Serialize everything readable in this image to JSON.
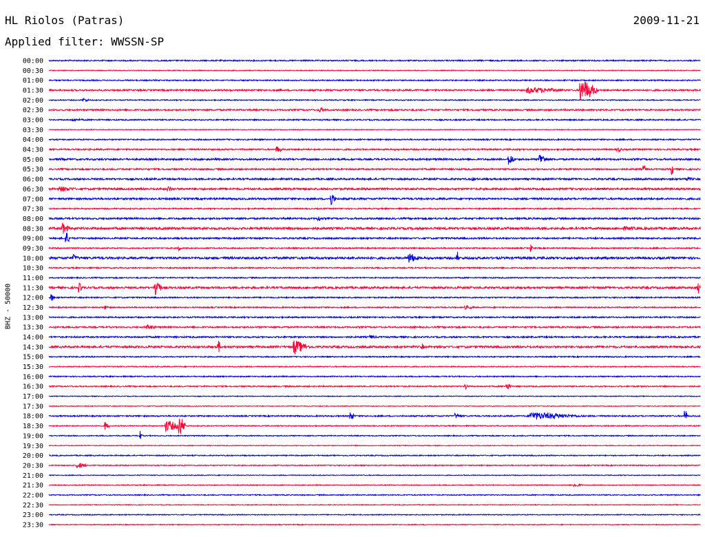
{
  "header": {
    "station": "HL Riolos (Patras)",
    "date": "2009-11-21",
    "filter": "Applied filter: WWSSN-SP"
  },
  "channel_label": "BHZ - 50000",
  "colors": {
    "even_row": "#0000dd",
    "odd_row": "#ff0033",
    "text": "#000000"
  },
  "chart_data": {
    "type": "line",
    "kind": "helicorder",
    "title": "HL Riolos (Patras)",
    "subtitle": "Applied filter: WWSSN-SP",
    "ylabel": "BHZ - 50000",
    "rows": [
      "00:00",
      "00:30",
      "01:00",
      "01:30",
      "02:00",
      "02:30",
      "03:00",
      "03:30",
      "04:00",
      "04:30",
      "05:00",
      "05:30",
      "06:00",
      "06:30",
      "07:00",
      "07:30",
      "08:00",
      "08:30",
      "09:00",
      "09:30",
      "10:00",
      "10:30",
      "11:00",
      "11:30",
      "12:00",
      "12:30",
      "13:00",
      "13:30",
      "14:00",
      "14:30",
      "15:00",
      "15:30",
      "16:00",
      "16:30",
      "17:00",
      "17:30",
      "18:00",
      "18:30",
      "19:00",
      "19:30",
      "20:00",
      "20:30",
      "21:00",
      "21:30",
      "22:00",
      "22:30",
      "23:00",
      "23:30"
    ],
    "row_duration_min": 30,
    "trace_colors": [
      "#0000dd",
      "#ff0033"
    ],
    "noise_levels": [
      1.0,
      0.6,
      0.9,
      1.3,
      0.8,
      1.2,
      1.0,
      0.6,
      1.0,
      1.2,
      1.4,
      1.2,
      1.4,
      1.6,
      1.5,
      1.0,
      1.4,
      1.8,
      1.3,
      1.0,
      1.8,
      1.0,
      0.9,
      1.6,
      1.0,
      1.0,
      1.1,
      1.2,
      1.2,
      1.6,
      0.9,
      0.8,
      0.9,
      1.0,
      0.6,
      0.6,
      1.0,
      0.8,
      0.8,
      0.6,
      0.8,
      0.8,
      0.6,
      0.7,
      0.8,
      0.6,
      0.7,
      0.6
    ],
    "events": [
      {
        "row": "01:30",
        "minute": 22,
        "amplitude": 5,
        "duration_min": 2.0
      },
      {
        "row": "01:30",
        "minute": 24.5,
        "amplitude": 17,
        "duration_min": 0.8
      },
      {
        "row": "02:00",
        "minute": 1.6,
        "amplitude": 3,
        "duration_min": 0.3
      },
      {
        "row": "02:30",
        "minute": 12.5,
        "amplitude": 4,
        "duration_min": 0.4
      },
      {
        "row": "03:00",
        "minute": 1.1,
        "amplitude": 2,
        "duration_min": 0.8
      },
      {
        "row": "04:30",
        "minute": 10.5,
        "amplitude": 5,
        "duration_min": 0.3
      },
      {
        "row": "04:30",
        "minute": 26.2,
        "amplitude": 4,
        "duration_min": 0.3
      },
      {
        "row": "05:00",
        "minute": 0.5,
        "amplitude": 2,
        "duration_min": 0.6
      },
      {
        "row": "05:00",
        "minute": 21.2,
        "amplitude": 8,
        "duration_min": 0.3
      },
      {
        "row": "05:00",
        "minute": 22.6,
        "amplitude": 9,
        "duration_min": 0.4
      },
      {
        "row": "05:30",
        "minute": 27.4,
        "amplitude": 7,
        "duration_min": 0.1
      },
      {
        "row": "05:30",
        "minute": 28.7,
        "amplitude": 9,
        "duration_min": 0.1
      },
      {
        "row": "06:00",
        "minute": 19.5,
        "amplitude": 3,
        "duration_min": 0.4
      },
      {
        "row": "06:00",
        "minute": 29.3,
        "amplitude": 3,
        "duration_min": 0.7
      },
      {
        "row": "06:30",
        "minute": 0.5,
        "amplitude": 4,
        "duration_min": 1.0
      },
      {
        "row": "06:30",
        "minute": 5.5,
        "amplitude": 4,
        "duration_min": 0.4
      },
      {
        "row": "07:00",
        "minute": 13.0,
        "amplitude": 11,
        "duration_min": 0.2
      },
      {
        "row": "08:00",
        "minute": 12.4,
        "amplitude": 5,
        "duration_min": 0.2
      },
      {
        "row": "08:30",
        "minute": 0.6,
        "amplitude": 9,
        "duration_min": 0.4
      },
      {
        "row": "08:30",
        "minute": 26.5,
        "amplitude": 3,
        "duration_min": 1.5
      },
      {
        "row": "09:00",
        "minute": 0.8,
        "amplitude": 9,
        "duration_min": 0.2
      },
      {
        "row": "09:30",
        "minute": 6.0,
        "amplitude": 5,
        "duration_min": 0.1
      },
      {
        "row": "09:30",
        "minute": 22.2,
        "amplitude": 6,
        "duration_min": 0.1
      },
      {
        "row": "10:00",
        "minute": 1.1,
        "amplitude": 6,
        "duration_min": 0.3
      },
      {
        "row": "10:00",
        "minute": 16.6,
        "amplitude": 8,
        "duration_min": 0.5
      },
      {
        "row": "10:00",
        "minute": 18.8,
        "amplitude": 10,
        "duration_min": 0.1
      },
      {
        "row": "11:30",
        "minute": 1.4,
        "amplitude": 7,
        "duration_min": 0.2
      },
      {
        "row": "11:30",
        "minute": 4.9,
        "amplitude": 16,
        "duration_min": 0.3
      },
      {
        "row": "11:30",
        "minute": 29.9,
        "amplitude": 11,
        "duration_min": 0.1
      },
      {
        "row": "12:00",
        "minute": 0.1,
        "amplitude": 6,
        "duration_min": 0.2
      },
      {
        "row": "12:30",
        "minute": 2.6,
        "amplitude": 3,
        "duration_min": 0.3
      },
      {
        "row": "12:30",
        "minute": 19.2,
        "amplitude": 3,
        "duration_min": 0.5
      },
      {
        "row": "13:30",
        "minute": 4.5,
        "amplitude": 4,
        "duration_min": 0.6
      },
      {
        "row": "14:00",
        "minute": 14.8,
        "amplitude": 3,
        "duration_min": 0.5
      },
      {
        "row": "14:30",
        "minute": 7.8,
        "amplitude": 12,
        "duration_min": 0.1
      },
      {
        "row": "14:30",
        "minute": 11.3,
        "amplitude": 11,
        "duration_min": 0.7
      },
      {
        "row": "14:30",
        "minute": 17.2,
        "amplitude": 5,
        "duration_min": 0.1
      },
      {
        "row": "16:30",
        "minute": 19.2,
        "amplitude": 5,
        "duration_min": 0.1
      },
      {
        "row": "16:30",
        "minute": 21.1,
        "amplitude": 6,
        "duration_min": 0.2
      },
      {
        "row": "18:00",
        "minute": 13.9,
        "amplitude": 7,
        "duration_min": 0.2
      },
      {
        "row": "18:00",
        "minute": 18.7,
        "amplitude": 4,
        "duration_min": 0.4
      },
      {
        "row": "18:00",
        "minute": 22.2,
        "amplitude": 6,
        "duration_min": 2.5
      },
      {
        "row": "18:00",
        "minute": 29.3,
        "amplitude": 11,
        "duration_min": 0.1
      },
      {
        "row": "18:30",
        "minute": 2.6,
        "amplitude": 6,
        "duration_min": 0.2
      },
      {
        "row": "18:30",
        "minute": 5.4,
        "amplitude": 9,
        "duration_min": 0.7
      },
      {
        "row": "18:30",
        "minute": 6.0,
        "amplitude": 16,
        "duration_min": 0.3
      },
      {
        "row": "19:00",
        "minute": 4.2,
        "amplitude": 7,
        "duration_min": 0.1
      },
      {
        "row": "20:30",
        "minute": 1.3,
        "amplitude": 5,
        "duration_min": 0.5
      },
      {
        "row": "21:30",
        "minute": 24.2,
        "amplitude": 3,
        "duration_min": 0.5
      }
    ]
  }
}
